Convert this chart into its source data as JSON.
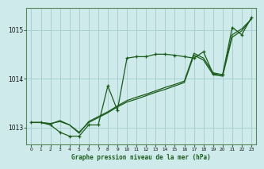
{
  "bg_color": "#ceeaea",
  "grid_color": "#a8d0d0",
  "line_color": "#1a5c1a",
  "title": "Graphe pression niveau de la mer (hPa)",
  "xlim": [
    -0.5,
    23.5
  ],
  "ylim": [
    1012.65,
    1015.45
  ],
  "yticks": [
    1013,
    1014,
    1015
  ],
  "xticks": [
    0,
    1,
    2,
    3,
    4,
    5,
    6,
    7,
    8,
    9,
    10,
    11,
    12,
    13,
    14,
    15,
    16,
    17,
    18,
    19,
    20,
    21,
    22,
    23
  ],
  "s1_x": [
    0,
    1,
    2,
    3,
    4,
    5,
    6,
    7,
    8,
    9,
    10,
    11,
    12,
    13,
    14,
    15,
    16,
    17,
    18,
    19,
    20,
    21,
    22,
    23
  ],
  "s1_y": [
    1013.1,
    1013.1,
    1013.05,
    1012.9,
    1012.82,
    1012.82,
    1013.05,
    1013.05,
    1013.85,
    1013.35,
    1014.42,
    1014.45,
    1014.45,
    1014.5,
    1014.5,
    1014.48,
    1014.45,
    1014.42,
    1014.55,
    1014.1,
    1014.08,
    1015.05,
    1014.9,
    1015.25
  ],
  "s2_x": [
    0,
    1,
    2,
    3,
    4,
    5,
    6,
    7,
    8,
    9,
    10,
    11,
    12,
    13,
    14,
    15,
    16,
    17,
    18,
    19,
    20,
    21,
    22,
    23
  ],
  "s2_y": [
    1013.1,
    1013.1,
    1013.08,
    1013.12,
    1013.05,
    1012.9,
    1013.1,
    1013.2,
    1013.3,
    1013.42,
    1013.52,
    1013.58,
    1013.65,
    1013.72,
    1013.78,
    1013.85,
    1013.92,
    1014.48,
    1014.38,
    1014.08,
    1014.05,
    1014.85,
    1014.98,
    1015.22
  ],
  "s3_x": [
    0,
    1,
    2,
    3,
    4,
    5,
    6,
    7,
    8,
    9,
    10,
    11,
    12,
    13,
    14,
    15,
    16,
    17,
    18,
    19,
    20,
    21,
    22,
    23
  ],
  "s3_y": [
    1013.1,
    1013.1,
    1013.07,
    1013.14,
    1013.05,
    1012.88,
    1013.12,
    1013.22,
    1013.32,
    1013.44,
    1013.55,
    1013.62,
    1013.68,
    1013.75,
    1013.82,
    1013.88,
    1013.95,
    1014.52,
    1014.42,
    1014.12,
    1014.08,
    1014.9,
    1015.02,
    1015.22
  ]
}
